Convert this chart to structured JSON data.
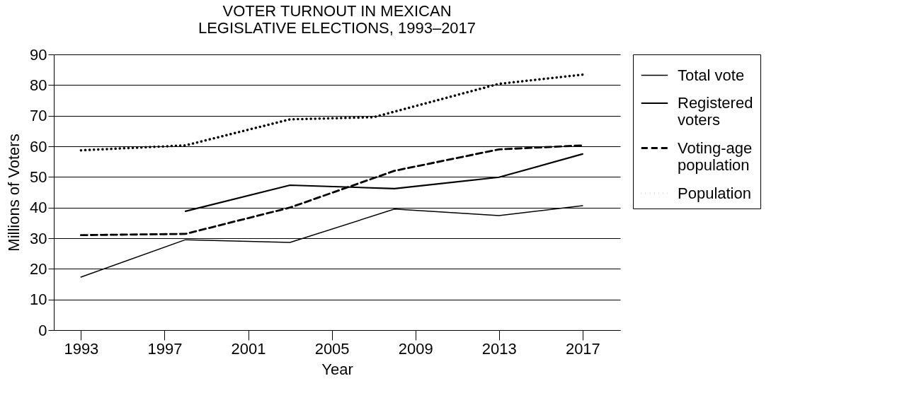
{
  "chart_data": {
    "type": "line",
    "title": "VOTER TURNOUT IN MEXICAN LEGISLATIVE ELECTIONS, 1993–2017",
    "xlabel": "Year",
    "ylabel": "Millions of Voters",
    "xlim": [
      1991.7,
      2018.8
    ],
    "xticks": [
      1993,
      1997,
      2001,
      2005,
      2009,
      2013,
      2017
    ],
    "ylim": [
      0,
      90
    ],
    "yticks": [
      0,
      10,
      20,
      30,
      40,
      50,
      60,
      70,
      80,
      90
    ],
    "grid": "y",
    "legend": "right",
    "marker": "none",
    "series": [
      {
        "name": "Total vote",
        "color": "#000000",
        "line_style": "solid",
        "x": [
          1993,
          1998,
          2003,
          2008,
          2013,
          2017
        ],
        "values": [
          17.3,
          29.5,
          28.6,
          39.5,
          37.4,
          40.6
        ]
      },
      {
        "name": "Registered voters",
        "color": "#000000",
        "line_style": "solid",
        "x": [
          1998,
          2003,
          2008,
          2013,
          2017
        ],
        "values": [
          38.8,
          47.3,
          46.2,
          49.9,
          57.5
        ]
      },
      {
        "name": "Voting-age population",
        "color": "#000000",
        "line_style": "dashed",
        "x": [
          1993,
          1998,
          2003,
          2008,
          2013,
          2017
        ],
        "values": [
          31,
          31.4,
          40,
          52,
          59,
          60.3
        ]
      },
      {
        "name": "Population",
        "color": "#000000",
        "line_style": "dotted",
        "x": [
          1993,
          1998,
          2003,
          2007,
          2013,
          2017
        ],
        "values": [
          58.7,
          60.3,
          68.8,
          69.5,
          80.4,
          83.4
        ]
      }
    ]
  }
}
